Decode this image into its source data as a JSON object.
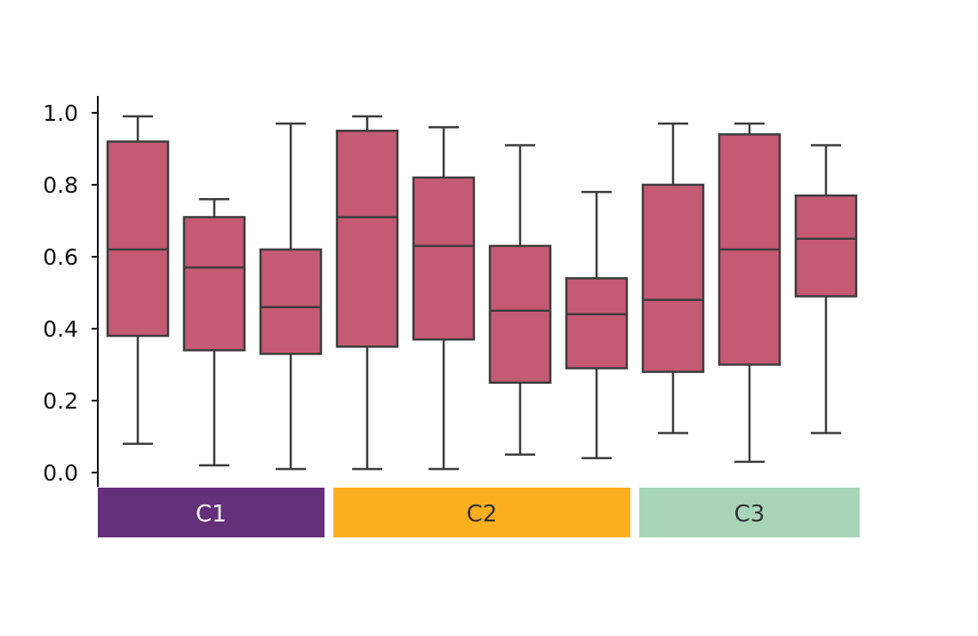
{
  "chart_data": {
    "type": "box",
    "ylim": [
      0,
      1
    ],
    "yticks": [
      {
        "value": 0.0,
        "label": "0.0"
      },
      {
        "value": 0.2,
        "label": "0.2"
      },
      {
        "value": 0.4,
        "label": "0.4"
      },
      {
        "value": 0.6,
        "label": "0.6"
      },
      {
        "value": 0.8,
        "label": "0.8"
      },
      {
        "value": 1.0,
        "label": "1.0"
      }
    ],
    "box_color": "#C55A74",
    "line_color": "#3D3D3D",
    "groups": [
      {
        "label": "C1",
        "color": "#65307A",
        "text_color": "#FFFFFF",
        "boxes": [
          {
            "whislo": 0.08,
            "q1": 0.38,
            "med": 0.62,
            "q3": 0.92,
            "whishi": 0.99
          },
          {
            "whislo": 0.02,
            "q1": 0.34,
            "med": 0.57,
            "q3": 0.71,
            "whishi": 0.76
          },
          {
            "whislo": 0.01,
            "q1": 0.33,
            "med": 0.46,
            "q3": 0.62,
            "whishi": 0.97
          }
        ]
      },
      {
        "label": "C2",
        "color": "#FCAF1E",
        "text_color": "#333333",
        "boxes": [
          {
            "whislo": 0.01,
            "q1": 0.35,
            "med": 0.71,
            "q3": 0.95,
            "whishi": 0.99
          },
          {
            "whislo": 0.01,
            "q1": 0.37,
            "med": 0.63,
            "q3": 0.82,
            "whishi": 0.96
          },
          {
            "whislo": 0.05,
            "q1": 0.25,
            "med": 0.45,
            "q3": 0.63,
            "whishi": 0.91
          },
          {
            "whislo": 0.04,
            "q1": 0.29,
            "med": 0.44,
            "q3": 0.54,
            "whishi": 0.78
          }
        ]
      },
      {
        "label": "C3",
        "color": "#A8D5B9",
        "text_color": "#333333",
        "boxes": [
          {
            "whislo": 0.11,
            "q1": 0.28,
            "med": 0.48,
            "q3": 0.8,
            "whishi": 0.97
          },
          {
            "whislo": 0.03,
            "q1": 0.3,
            "med": 0.62,
            "q3": 0.94,
            "whishi": 0.97
          },
          {
            "whislo": 0.11,
            "q1": 0.49,
            "med": 0.65,
            "q3": 0.77,
            "whishi": 0.91
          }
        ]
      }
    ]
  }
}
